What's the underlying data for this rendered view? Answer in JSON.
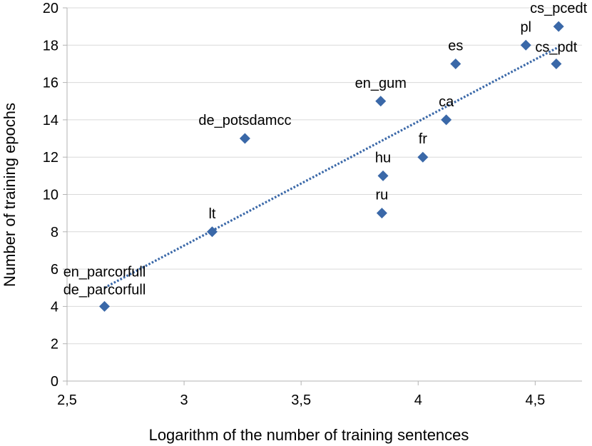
{
  "chart_data": {
    "type": "scatter",
    "title": "",
    "xlabel": "Logarithm of the number of training sentences",
    "ylabel": "Number of training epochs",
    "xlim": [
      2.5,
      4.7
    ],
    "ylim": [
      0,
      20
    ],
    "xticks": [
      2.5,
      3,
      3.5,
      4,
      4.5
    ],
    "xtick_labels": [
      "2,5",
      "3",
      "3,5",
      "4",
      "4,5"
    ],
    "yticks": [
      0,
      2,
      4,
      6,
      8,
      10,
      12,
      14,
      16,
      18,
      20
    ],
    "ytick_labels": [
      "0",
      "2",
      "4",
      "6",
      "8",
      "10",
      "12",
      "14",
      "16",
      "18",
      "20"
    ],
    "grid": "horizontal",
    "marker": "diamond",
    "point_color": "#3A68A8",
    "trendline": {
      "type": "linear",
      "style": "dotted",
      "color": "#3A68A8",
      "x_start": 2.66,
      "y_start": 5.0,
      "x_end": 4.6,
      "y_end": 17.9
    },
    "points": [
      {
        "label": "en_parcorfull",
        "x": 2.66,
        "y": 4,
        "label2": "de_parcorfull"
      },
      {
        "label": "lt",
        "x": 3.12,
        "y": 8
      },
      {
        "label": "de_potsdamcc",
        "x": 3.26,
        "y": 13
      },
      {
        "label": "en_gum",
        "x": 3.84,
        "y": 15
      },
      {
        "label": "hu",
        "x": 3.85,
        "y": 11
      },
      {
        "label": "ru",
        "x": 3.845,
        "y": 9
      },
      {
        "label": "fr",
        "x": 4.02,
        "y": 12
      },
      {
        "label": "ca",
        "x": 4.12,
        "y": 14
      },
      {
        "label": "es",
        "x": 4.16,
        "y": 17
      },
      {
        "label": "pl",
        "x": 4.46,
        "y": 18
      },
      {
        "label": "cs_pdt",
        "x": 4.59,
        "y": 17
      },
      {
        "label": "cs_pcedt",
        "x": 4.6,
        "y": 19
      }
    ]
  }
}
